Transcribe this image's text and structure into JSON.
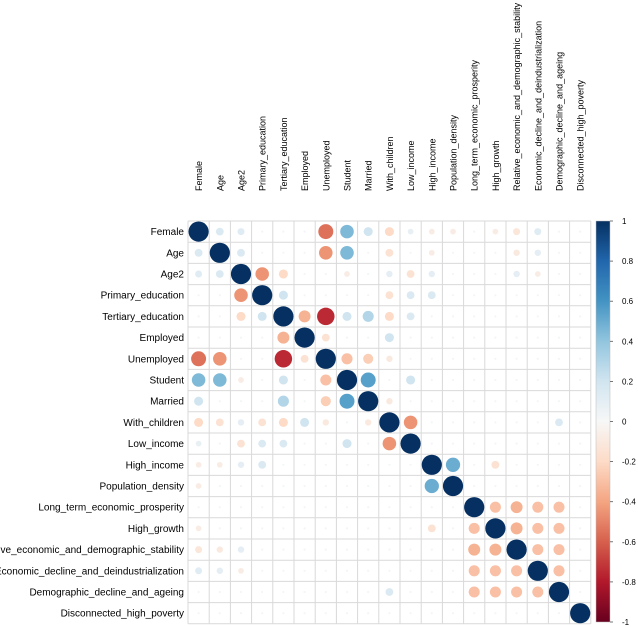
{
  "chart_data": {
    "type": "heatmap",
    "variables": [
      "Female",
      "Age",
      "Age2",
      "Primary_education",
      "Tertiary_education",
      "Employed",
      "Unemployed",
      "Student",
      "Married",
      "With_children",
      "Low_income",
      "High_income",
      "Population_density",
      "Long_term_economic_prosperity",
      "High_growth",
      "Relative_economic_and_demographic_stability",
      "Economic_decline_and_deindustrialization",
      "Demographic_decline_and_ageing",
      "Disconnected_high_poverty"
    ],
    "correlations": [
      {
        "row": 1,
        "col": 2,
        "value": 0.15
      },
      {
        "row": 1,
        "col": 3,
        "value": 0.12
      },
      {
        "row": 1,
        "col": 7,
        "value": -0.55
      },
      {
        "row": 1,
        "col": 8,
        "value": 0.45
      },
      {
        "row": 1,
        "col": 9,
        "value": 0.2
      },
      {
        "row": 1,
        "col": 10,
        "value": -0.2
      },
      {
        "row": 1,
        "col": 11,
        "value": 0.08
      },
      {
        "row": 1,
        "col": 12,
        "value": -0.08
      },
      {
        "row": 1,
        "col": 13,
        "value": -0.08
      },
      {
        "row": 1,
        "col": 15,
        "value": -0.08
      },
      {
        "row": 1,
        "col": 16,
        "value": -0.12
      },
      {
        "row": 1,
        "col": 17,
        "value": 0.12
      },
      {
        "row": 2,
        "col": 3,
        "value": 0.15
      },
      {
        "row": 2,
        "col": 7,
        "value": -0.45
      },
      {
        "row": 2,
        "col": 8,
        "value": 0.45
      },
      {
        "row": 2,
        "col": 10,
        "value": -0.15
      },
      {
        "row": 2,
        "col": 12,
        "value": -0.08
      },
      {
        "row": 2,
        "col": 16,
        "value": -0.1
      },
      {
        "row": 2,
        "col": 17,
        "value": 0.1
      },
      {
        "row": 3,
        "col": 4,
        "value": -0.45
      },
      {
        "row": 3,
        "col": 5,
        "value": -0.2
      },
      {
        "row": 3,
        "col": 8,
        "value": -0.08
      },
      {
        "row": 3,
        "col": 10,
        "value": 0.1
      },
      {
        "row": 3,
        "col": 11,
        "value": -0.15
      },
      {
        "row": 3,
        "col": 12,
        "value": 0.1
      },
      {
        "row": 3,
        "col": 16,
        "value": 0.1
      },
      {
        "row": 3,
        "col": 17,
        "value": -0.08
      },
      {
        "row": 4,
        "col": 5,
        "value": 0.2
      },
      {
        "row": 4,
        "col": 10,
        "value": -0.15
      },
      {
        "row": 4,
        "col": 11,
        "value": 0.15
      },
      {
        "row": 4,
        "col": 12,
        "value": 0.15
      },
      {
        "row": 5,
        "col": 6,
        "value": -0.35
      },
      {
        "row": 5,
        "col": 7,
        "value": -0.75
      },
      {
        "row": 5,
        "col": 8,
        "value": 0.2
      },
      {
        "row": 5,
        "col": 9,
        "value": 0.3
      },
      {
        "row": 5,
        "col": 10,
        "value": -0.2
      },
      {
        "row": 5,
        "col": 11,
        "value": 0.15
      },
      {
        "row": 6,
        "col": 7,
        "value": -0.15
      },
      {
        "row": 6,
        "col": 10,
        "value": 0.2
      },
      {
        "row": 7,
        "col": 8,
        "value": -0.3
      },
      {
        "row": 7,
        "col": 9,
        "value": -0.25
      },
      {
        "row": 7,
        "col": 10,
        "value": -0.1
      },
      {
        "row": 8,
        "col": 9,
        "value": 0.55
      },
      {
        "row": 8,
        "col": 11,
        "value": 0.2
      },
      {
        "row": 9,
        "col": 10,
        "value": -0.1
      },
      {
        "row": 10,
        "col": 11,
        "value": -0.45
      },
      {
        "row": 10,
        "col": 18,
        "value": 0.15
      },
      {
        "row": 12,
        "col": 13,
        "value": 0.5
      },
      {
        "row": 12,
        "col": 15,
        "value": -0.15
      },
      {
        "row": 14,
        "col": 15,
        "value": -0.3
      },
      {
        "row": 14,
        "col": 16,
        "value": -0.35
      },
      {
        "row": 14,
        "col": 17,
        "value": -0.3
      },
      {
        "row": 14,
        "col": 18,
        "value": -0.3
      },
      {
        "row": 15,
        "col": 16,
        "value": -0.35
      },
      {
        "row": 15,
        "col": 17,
        "value": -0.3
      },
      {
        "row": 15,
        "col": 18,
        "value": -0.3
      },
      {
        "row": 16,
        "col": 17,
        "value": -0.3
      },
      {
        "row": 16,
        "col": 18,
        "value": -0.3
      },
      {
        "row": 17,
        "col": 18,
        "value": -0.3
      }
    ],
    "colorbar": {
      "ticks": [
        "1",
        "0.8",
        "0.6",
        "0.4",
        "0.2",
        "0",
        "-0.2",
        "-0.4",
        "-0.6",
        "-0.8",
        "-1"
      ],
      "range": [
        -1,
        1
      ],
      "colors": {
        "low": "#67001f",
        "mid": "#f7f7f7",
        "high": "#053061"
      }
    },
    "grid": true,
    "legend_position": "right"
  }
}
